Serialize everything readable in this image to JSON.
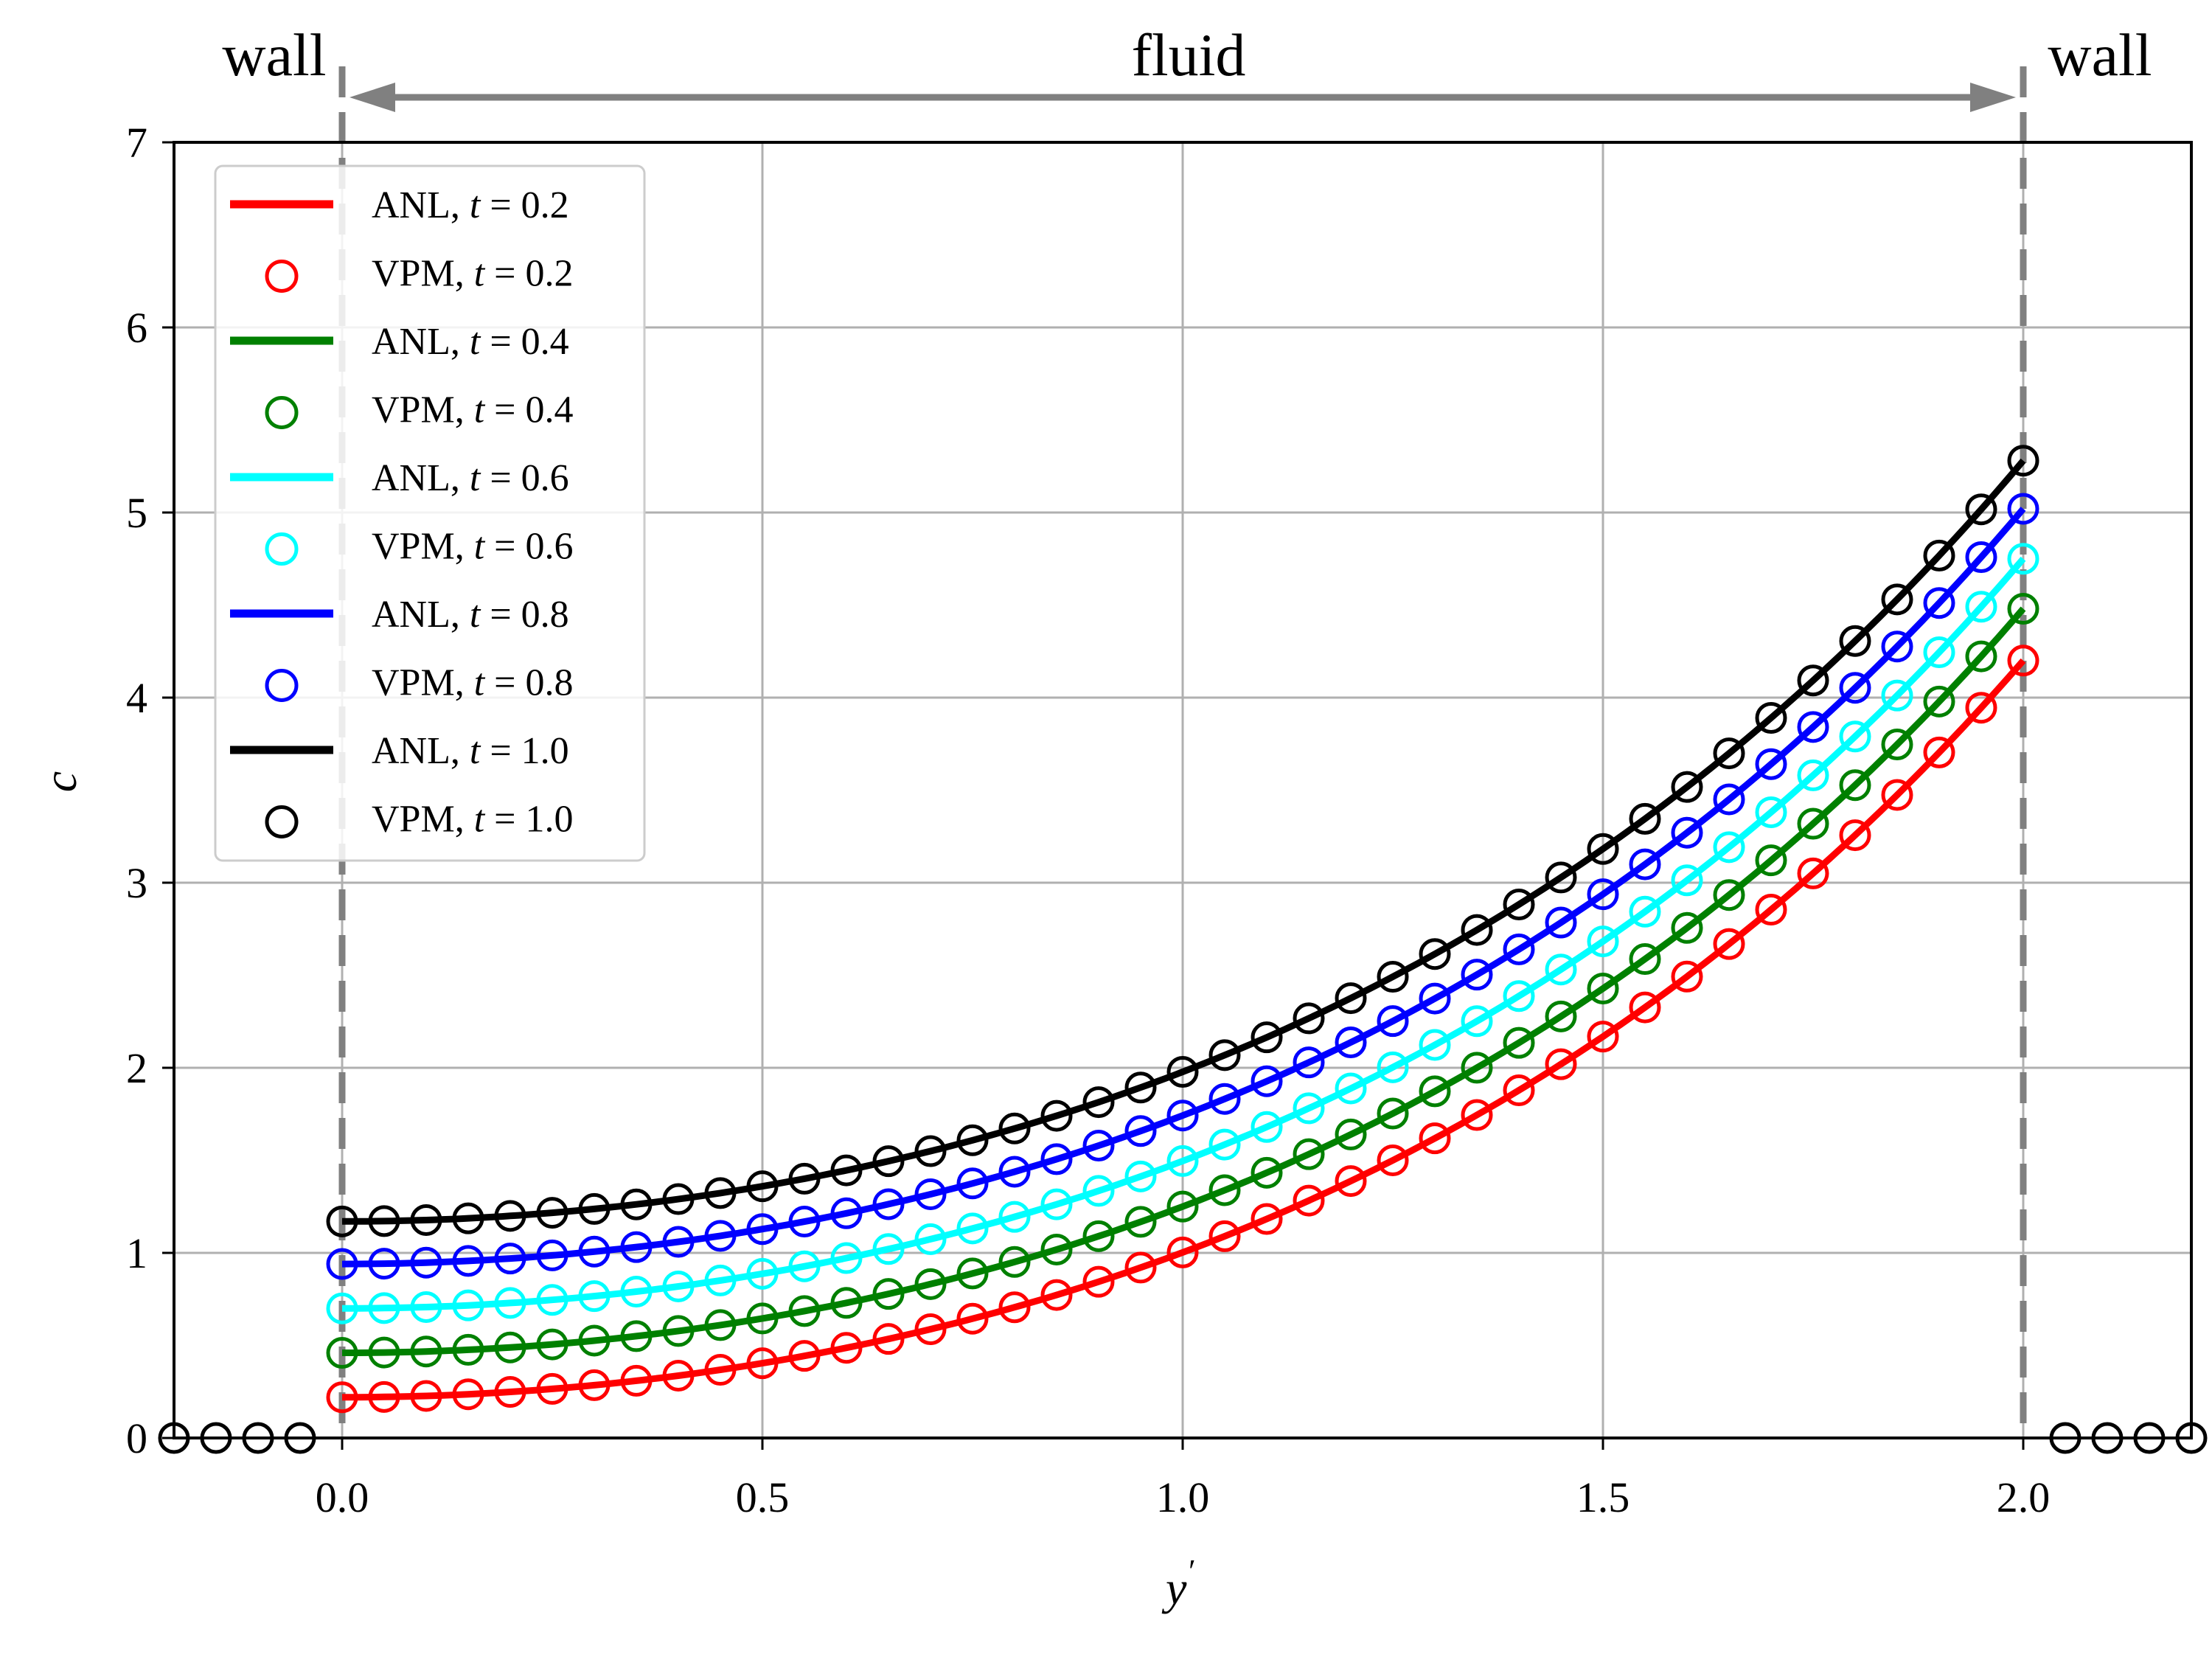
{
  "chart_data": {
    "type": "line",
    "xlabel": "y",
    "xlabel_superscript": "′",
    "ylabel": "c",
    "xlim": [
      -0.2,
      2.2
    ],
    "ylim": [
      0,
      7
    ],
    "xticks": [
      "0.0",
      "0.5",
      "1.0",
      "1.5",
      "2.0"
    ],
    "xtick_values": [
      0,
      0.5,
      1.0,
      1.5,
      2.0
    ],
    "yticks": [
      "0",
      "1",
      "2",
      "3",
      "4",
      "5",
      "6",
      "7"
    ],
    "ytick_values": [
      0,
      1,
      2,
      3,
      4,
      5,
      6,
      7
    ],
    "grid": true,
    "legend_position": "top-left",
    "annotations": {
      "left_wall": "wall",
      "fluid": "fluid",
      "right_wall": "wall",
      "wall_positions": [
        0,
        2.0
      ]
    },
    "colors": {
      "t02": "#ff0000",
      "t04": "#008000",
      "t06": "#00ffff",
      "t08": "#0000ff",
      "t10": "#000000",
      "wall_line": "#808080",
      "grid": "#b0b0b0"
    },
    "series": [
      {
        "name": "ANL, t = 0.2",
        "method": "ANL",
        "t_label": "0.2",
        "style": "line",
        "color": "#ff0000",
        "params": {
          "c0": 0.22,
          "c1": 4.2
        }
      },
      {
        "name": "VPM, t = 0.2",
        "method": "VPM",
        "t_label": "0.2",
        "style": "marker",
        "color": "#ff0000",
        "params": {
          "c0": 0.22,
          "c1": 4.2
        }
      },
      {
        "name": "ANL, t = 0.4",
        "method": "ANL",
        "t_label": "0.4",
        "style": "line",
        "color": "#008000",
        "params": {
          "c0": 0.46,
          "c1": 4.48
        }
      },
      {
        "name": "VPM, t = 0.4",
        "method": "VPM",
        "t_label": "0.4",
        "style": "marker",
        "color": "#008000",
        "params": {
          "c0": 0.46,
          "c1": 4.48
        }
      },
      {
        "name": "ANL, t = 0.6",
        "method": "ANL",
        "t_label": "0.6",
        "style": "line",
        "color": "#00ffff",
        "params": {
          "c0": 0.7,
          "c1": 4.75
        }
      },
      {
        "name": "VPM, t = 0.6",
        "method": "VPM",
        "t_label": "0.6",
        "style": "marker",
        "color": "#00ffff",
        "params": {
          "c0": 0.7,
          "c1": 4.75
        }
      },
      {
        "name": "ANL, t = 0.8",
        "method": "ANL",
        "t_label": "0.8",
        "style": "line",
        "color": "#0000ff",
        "params": {
          "c0": 0.94,
          "c1": 5.02
        }
      },
      {
        "name": "VPM, t = 0.8",
        "method": "VPM",
        "t_label": "0.8",
        "style": "marker",
        "color": "#0000ff",
        "params": {
          "c0": 0.94,
          "c1": 5.02
        }
      },
      {
        "name": "ANL, t = 1.0",
        "method": "ANL",
        "t_label": "1.0",
        "style": "line",
        "color": "#000000",
        "params": {
          "c0": 1.17,
          "c1": 5.28
        }
      },
      {
        "name": "VPM, t = 1.0",
        "method": "VPM",
        "t_label": "1.0",
        "style": "marker",
        "color": "#000000",
        "params": {
          "c0": 1.17,
          "c1": 5.28
        }
      }
    ],
    "outside_points": {
      "color": "#000000",
      "x": [
        -0.2,
        -0.15,
        -0.1,
        -0.05,
        2.05,
        2.1,
        2.15,
        2.2
      ],
      "y": [
        0,
        0,
        0,
        0,
        0,
        0,
        0,
        0
      ]
    },
    "marker_x_step": 0.05
  }
}
